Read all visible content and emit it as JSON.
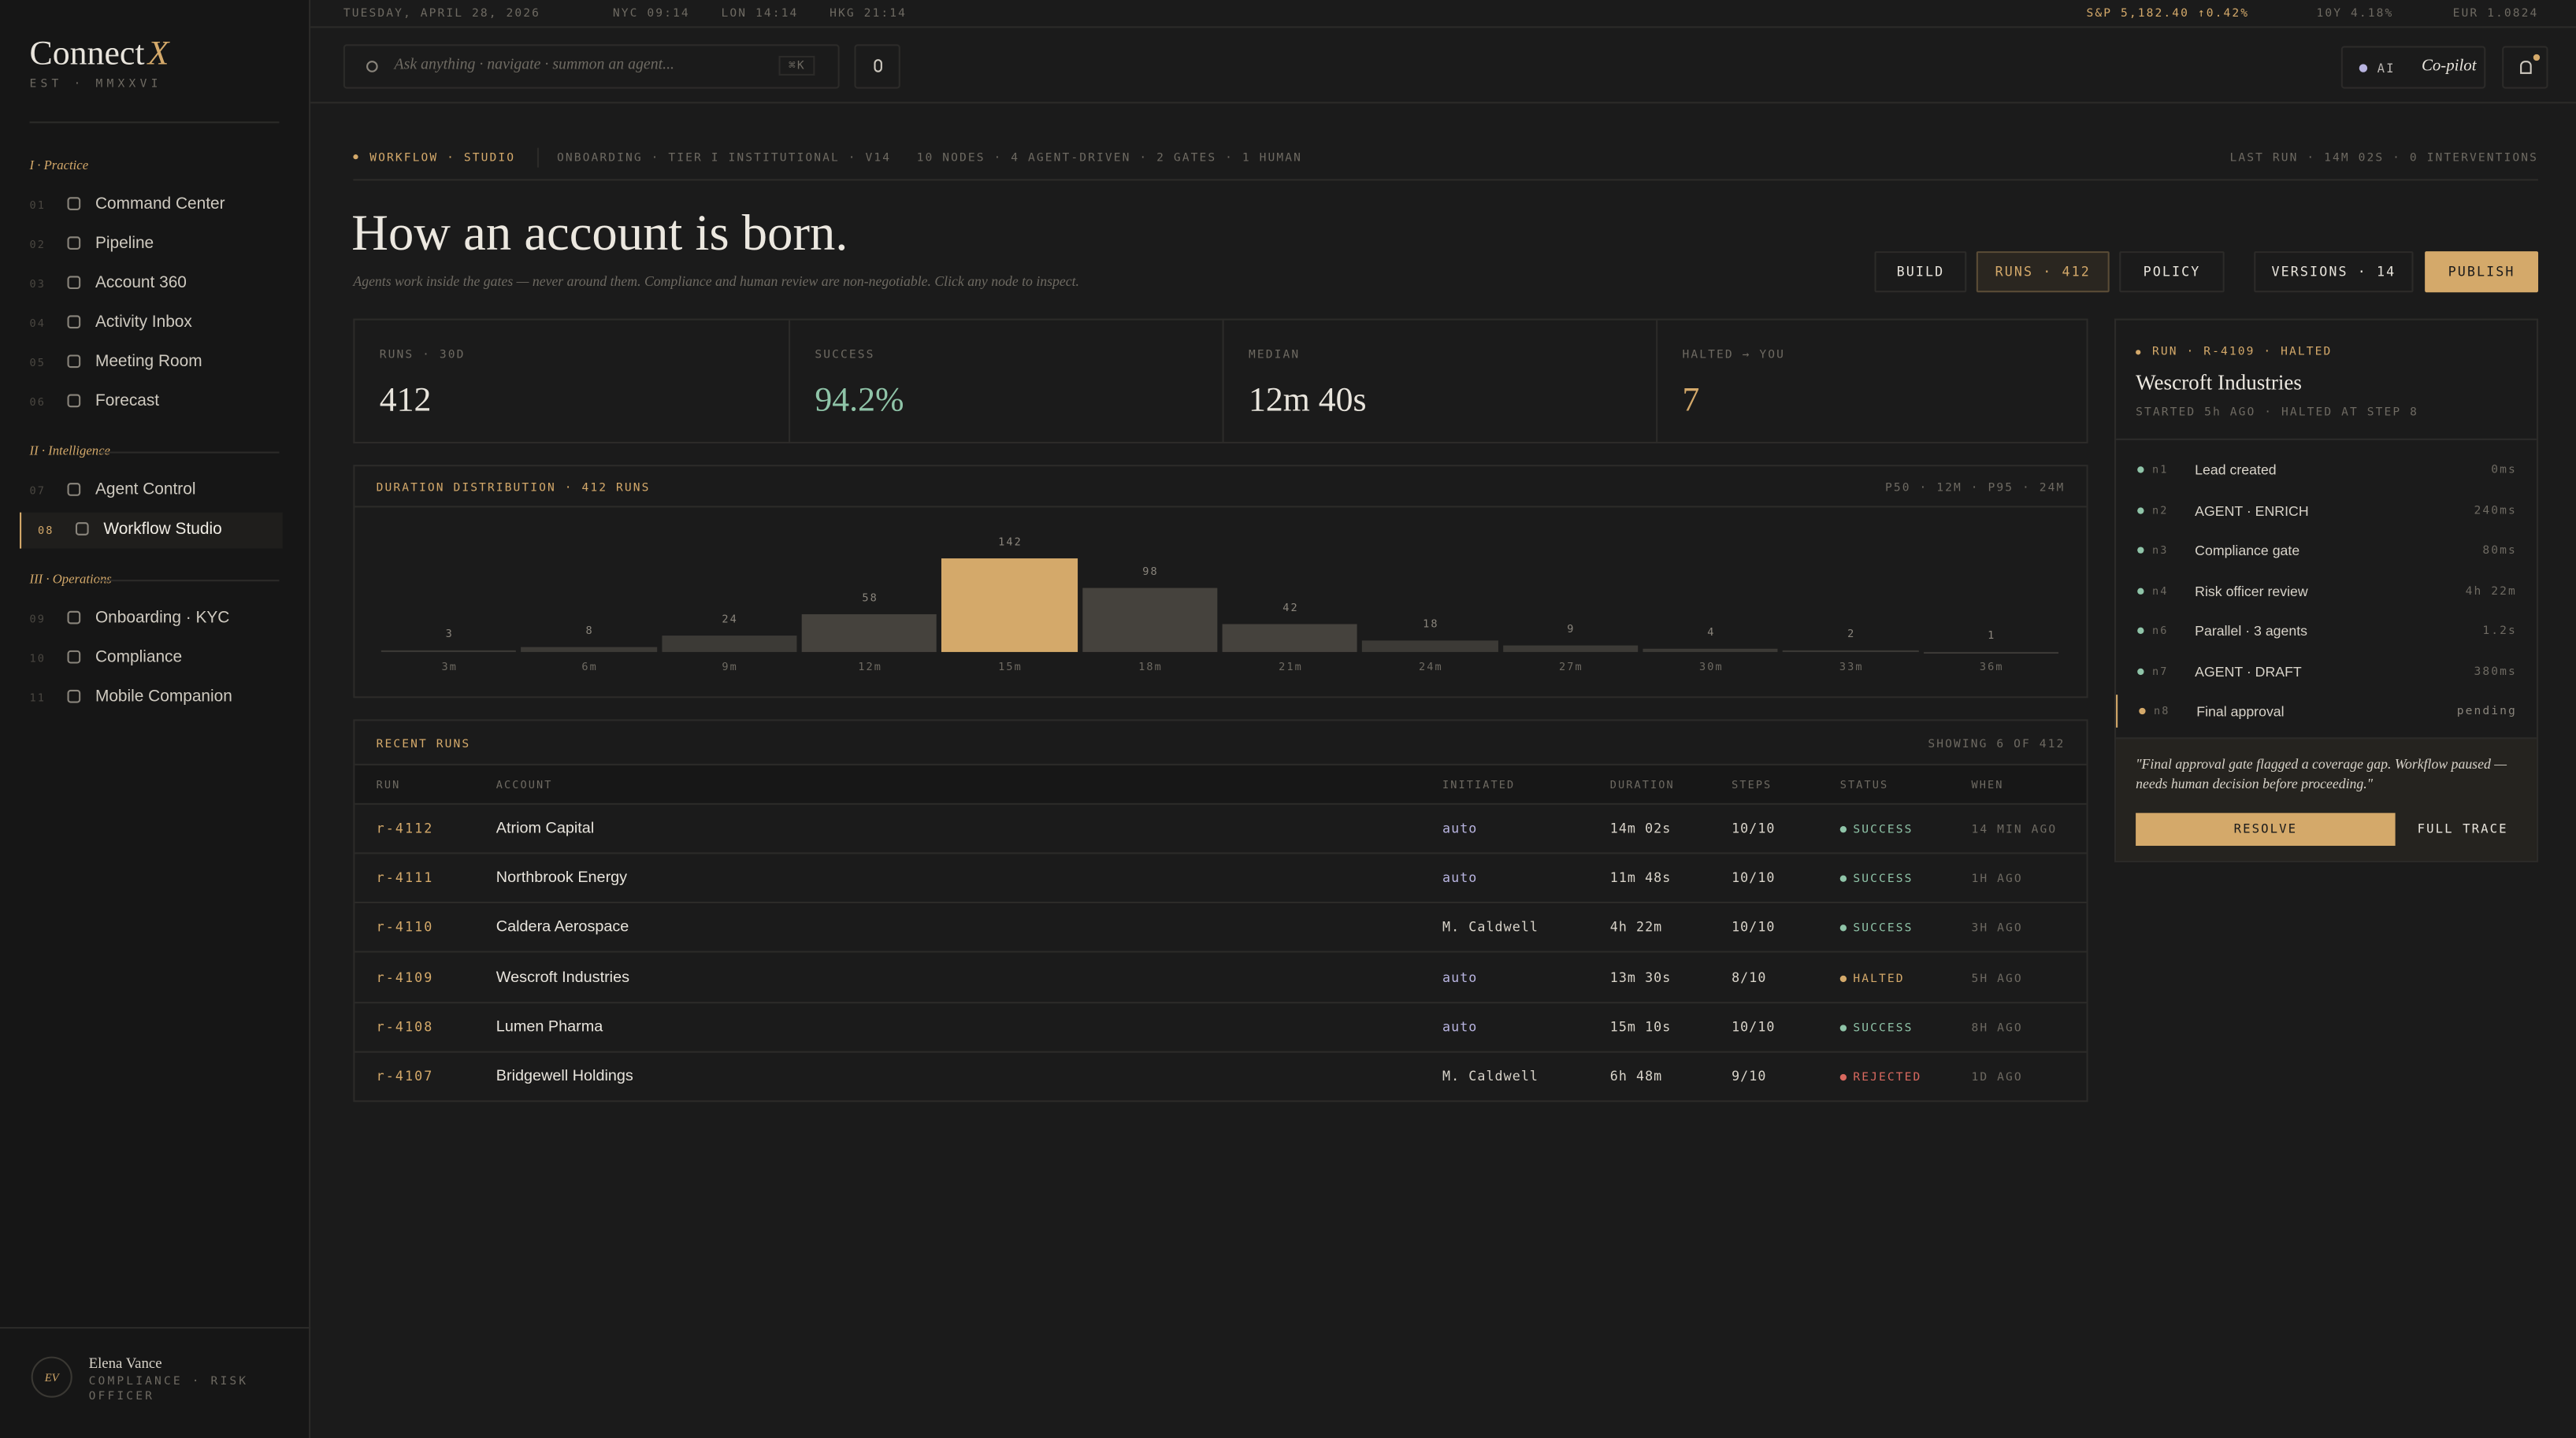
{
  "sidebar": {
    "brand": "Connect",
    "brand_mark": "X",
    "est": "EST · MMXXVI",
    "sections": [
      {
        "title": "I · Practice",
        "items": [
          {
            "num": "01",
            "label": "Command Center"
          },
          {
            "num": "02",
            "label": "Pipeline"
          },
          {
            "num": "03",
            "label": "Account 360"
          },
          {
            "num": "04",
            "label": "Activity Inbox"
          },
          {
            "num": "05",
            "label": "Meeting Room"
          },
          {
            "num": "06",
            "label": "Forecast"
          }
        ]
      },
      {
        "title": "II · Intelligence",
        "items": [
          {
            "num": "07",
            "label": "Agent Control"
          },
          {
            "num": "08",
            "label": "Workflow Studio",
            "active": true
          }
        ]
      },
      {
        "title": "III · Operations",
        "items": [
          {
            "num": "09",
            "label": "Onboarding · KYC"
          },
          {
            "num": "10",
            "label": "Compliance"
          },
          {
            "num": "11",
            "label": "Mobile Companion"
          }
        ]
      }
    ],
    "user": {
      "initials": "EV",
      "name": "Elena Vance",
      "role": "COMPLIANCE · RISK OFFICER"
    }
  },
  "topbar": {
    "date": "TUESDAY, APRIL 28, 2026",
    "clocks": [
      "NYC 09:14",
      "LON 14:14",
      "HKG 21:14"
    ],
    "tickers": [
      "S&P 5,182.40 ↑0.42%",
      "10Y 4.18%",
      "EUR 1.0824"
    ],
    "search_placeholder": "Ask anything · navigate · summon an agent...",
    "shortcut": "⌘K",
    "ai": "AI",
    "copilot": "Co-pilot"
  },
  "breadcrumb": {
    "tag": "WORKFLOW · STUDIO",
    "meta": "ONBOARDING · TIER I INSTITUTIONAL · V14",
    "counts": "10 NODES · 4 AGENT-DRIVEN · 2 GATES · 1 HUMAN",
    "last_run": "LAST RUN · 14M 02S · 0 INTERVENTIONS"
  },
  "hero": {
    "title": "How an account is born.",
    "subtitle": "Agents work inside the gates — never around them. Compliance and human review are non-negotiable. Click any node to inspect."
  },
  "tabs": [
    {
      "label": "BUILD"
    },
    {
      "label": "RUNS · 412",
      "active": true
    },
    {
      "label": "POLICY"
    },
    {
      "label": "VERSIONS · 14"
    },
    {
      "label": "PUBLISH",
      "primary": true
    }
  ],
  "stats": [
    {
      "label": "RUNS · 30D",
      "value": "412",
      "color": "#e8e4dc"
    },
    {
      "label": "SUCCESS",
      "value": "94.2%",
      "color": "#8fc4a8"
    },
    {
      "label": "MEDIAN",
      "value": "12m 40s",
      "color": "#e8e4dc"
    },
    {
      "label": "HALTED → YOU",
      "value": "7",
      "color": "#d4a96a"
    }
  ],
  "chart_data": {
    "type": "bar",
    "title": "DURATION DISTRIBUTION · 412 RUNS",
    "subtitle": "P50 · 12M · P95 · 24M",
    "categories": [
      "3m",
      "6m",
      "9m",
      "12m",
      "15m",
      "18m",
      "21m",
      "24m",
      "27m",
      "30m",
      "33m",
      "36m"
    ],
    "values": [
      3,
      8,
      24,
      58,
      142,
      98,
      42,
      18,
      9,
      4,
      2,
      1
    ],
    "colors": [
      "#3c3a36",
      "#3c3a36",
      "#3c3a36",
      "#45423d",
      "#d4a96a",
      "#45423d",
      "#45423d",
      "#3c3a36",
      "#3c3a36",
      "#3c3a36",
      "#3c3a36",
      "#3c3a36"
    ]
  },
  "runs": {
    "title": "RECENT RUNS",
    "showing": "SHOWING 6 OF 412",
    "columns": [
      "RUN",
      "ACCOUNT",
      "INITIATED",
      "DURATION",
      "STEPS",
      "STATUS",
      "WHEN"
    ],
    "status_colors": {
      "SUCCESS": "#8fc4a8",
      "HALTED": "#d4a96a",
      "REJECTED": "#d9695f"
    },
    "rows": [
      [
        "r-4112",
        "Atriom Capital",
        "auto",
        "14m 02s",
        "10/10",
        "SUCCESS",
        "14 MIN AGO"
      ],
      [
        "r-4111",
        "Northbrook Energy",
        "auto",
        "11m 48s",
        "10/10",
        "SUCCESS",
        "1H AGO"
      ],
      [
        "r-4110",
        "Caldera Aerospace",
        "M. Caldwell",
        "4h 22m",
        "10/10",
        "SUCCESS",
        "3H AGO"
      ],
      [
        "r-4109",
        "Wescroft Industries",
        "auto",
        "13m 30s",
        "8/10",
        "HALTED",
        "5H AGO"
      ],
      [
        "r-4108",
        "Lumen Pharma",
        "auto",
        "15m 10s",
        "10/10",
        "SUCCESS",
        "8H AGO"
      ],
      [
        "r-4107",
        "Bridgewell Holdings",
        "M. Caldwell",
        "6h 48m",
        "9/10",
        "REJECTED",
        "1D AGO"
      ]
    ]
  },
  "run_panel": {
    "tag": "RUN · R-4109 · HALTED",
    "title": "Wescroft Industries",
    "meta": "STARTED 5h AGO · HALTED AT STEP 8",
    "steps": [
      {
        "id": "n1",
        "label": "Lead created",
        "time": "0ms",
        "color": "#8fc4a8"
      },
      {
        "id": "n2",
        "label": "AGENT · ENRICH",
        "time": "240ms",
        "color": "#8fc4a8"
      },
      {
        "id": "n3",
        "label": "Compliance gate",
        "time": "80ms",
        "color": "#8fc4a8"
      },
      {
        "id": "n4",
        "label": "Risk officer review",
        "time": "4h 22m",
        "color": "#8fc4a8"
      },
      {
        "id": "n6",
        "label": "Parallel · 3 agents",
        "time": "1.2s",
        "color": "#8fc4a8"
      },
      {
        "id": "n7",
        "label": "AGENT · DRAFT",
        "time": "380ms",
        "color": "#8fc4a8"
      },
      {
        "id": "n8",
        "label": "Final approval",
        "time": "pending",
        "color": "#d4a96a",
        "active": true
      }
    ],
    "note": "\"Final approval gate flagged a coverage gap. Workflow paused — needs human decision before proceeding.\"",
    "resolve": "RESOLVE",
    "trace": "FULL TRACE"
  }
}
